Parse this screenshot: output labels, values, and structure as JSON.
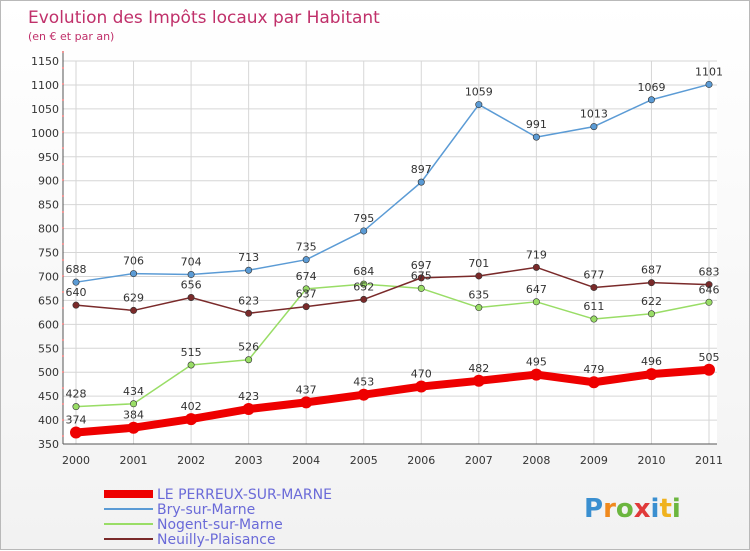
{
  "chart_data": {
    "type": "line",
    "title": "Evolution des Impôts locaux par Habitant",
    "subtitle": "(en € et par an)",
    "categories": [
      "2000",
      "2001",
      "2002",
      "2003",
      "2004",
      "2005",
      "2006",
      "2007",
      "2008",
      "2009",
      "2010",
      "2011"
    ],
    "ylim": [
      350,
      1150
    ],
    "yticks": [
      350,
      400,
      450,
      500,
      550,
      600,
      650,
      700,
      750,
      800,
      850,
      900,
      950,
      1000,
      1050,
      1100,
      1150
    ],
    "grid": true,
    "legend_position": "bottom-left",
    "series": [
      {
        "name": "Bry-sur-Marne",
        "color": "#5b9bd5",
        "values": [
          688,
          706,
          704,
          713,
          735,
          795,
          897,
          1059,
          991,
          1013,
          1069,
          1101
        ]
      },
      {
        "name": "Nogent-sur-Marne",
        "color": "#99dd66",
        "values": [
          428,
          434,
          515,
          526,
          674,
          684,
          675,
          635,
          647,
          611,
          622,
          646
        ]
      },
      {
        "name": "Neuilly-Plaisance",
        "color": "#7a2a2a",
        "values": [
          640,
          629,
          656,
          623,
          637,
          652,
          697,
          701,
          719,
          677,
          687,
          683
        ]
      },
      {
        "name": "LE PERREUX-SUR-MARNE",
        "color": "#ee0000",
        "values": [
          374,
          384,
          402,
          423,
          437,
          453,
          470,
          482,
          495,
          479,
          496,
          505
        ]
      }
    ]
  },
  "legend": {
    "items": [
      "LE PERREUX-SUR-MARNE",
      "Bry-sur-Marne",
      "Nogent-sur-Marne",
      "Neuilly-Plaisance"
    ],
    "colors": [
      "#ee0000",
      "#5b9bd5",
      "#99dd66",
      "#7a2a2a"
    ],
    "text_color": "#6a6ad8"
  },
  "logo": {
    "text": "Proxiti"
  }
}
